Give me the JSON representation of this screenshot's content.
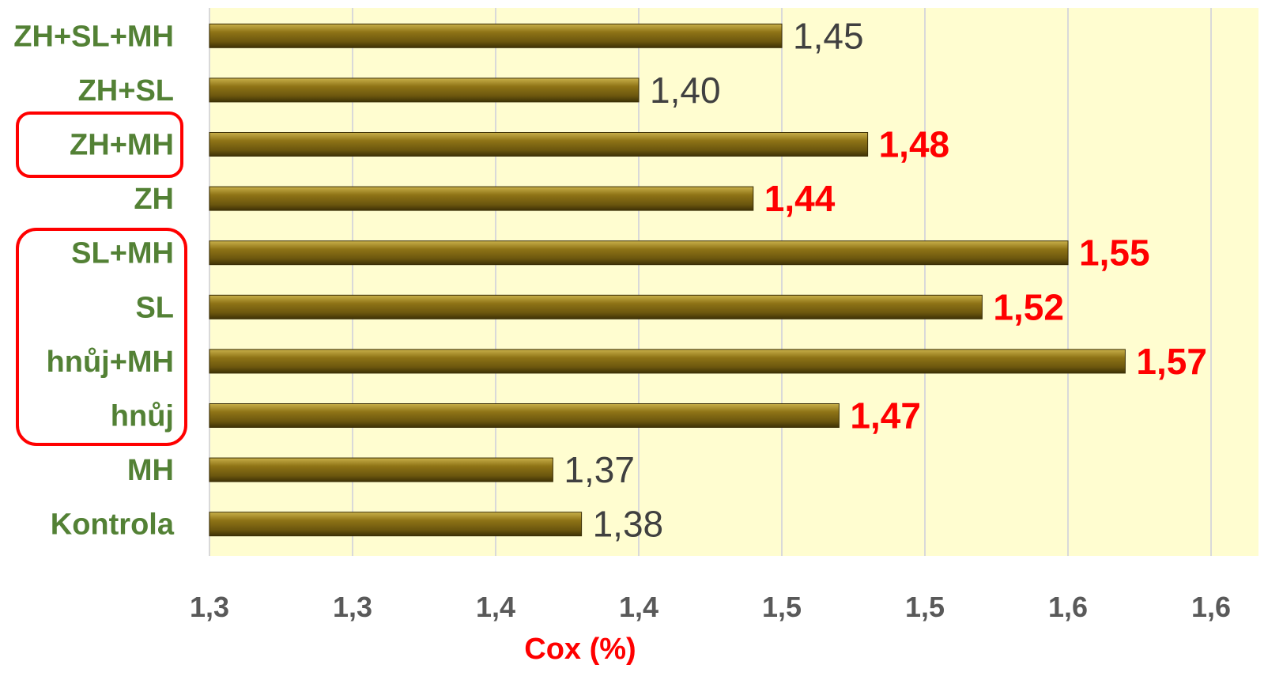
{
  "chart_data": {
    "type": "bar",
    "orientation": "horizontal",
    "categories": [
      "ZH+SL+MH",
      "ZH+SL",
      "ZH+MH",
      "ZH",
      "SL+MH",
      "SL",
      "hnůj+MH",
      "hnůj",
      "MH",
      "Kontrola"
    ],
    "values": [
      1.45,
      1.4,
      1.48,
      1.44,
      1.55,
      1.52,
      1.57,
      1.47,
      1.37,
      1.38
    ],
    "value_labels": [
      "1,45",
      "1,40",
      "1,48",
      "1,44",
      "1,55",
      "1,52",
      "1,57",
      "1,47",
      "1,37",
      "1,38"
    ],
    "highlighted": [
      false,
      false,
      true,
      true,
      true,
      true,
      true,
      true,
      false,
      false
    ],
    "xlabel": "Cox (%)",
    "ylabel": "",
    "xlim": [
      1.25,
      1.6
    ],
    "xticks": [
      1.25,
      1.3,
      1.35,
      1.4,
      1.45,
      1.5,
      1.55,
      1.6
    ],
    "xtick_labels": [
      "1,3",
      "1,3",
      "1,4",
      "1,4",
      "1,5",
      "1,5",
      "1,6",
      "1,6"
    ],
    "grid": true,
    "legend": "none",
    "colors": {
      "bar": "#7a6312",
      "plot_bg": "#fffdd0",
      "category_text": "#538135",
      "highlight": "#ff0000",
      "value_text": "#404040",
      "tick_text": "#595959",
      "grid": "#d9d9d9"
    }
  }
}
